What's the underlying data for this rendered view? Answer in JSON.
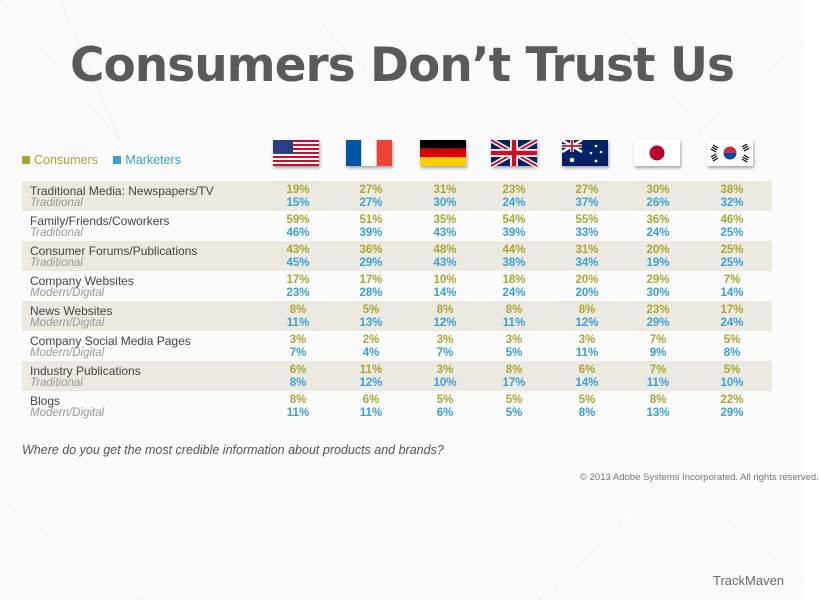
{
  "title": "Consumers Don’t Trust Us",
  "colors": {
    "consumers": "#a9a733",
    "marketers": "#3aa0d8"
  },
  "legend": [
    {
      "label": "Consumers",
      "color": "#a9a733"
    },
    {
      "label": "Marketers",
      "color": "#3aa0d8"
    }
  ],
  "flags": [
    "us-flag-icon",
    "france-flag-icon",
    "germany-flag-icon",
    "uk-flag-icon",
    "australia-flag-icon",
    "japan-flag-icon",
    "south-korea-flag-icon"
  ],
  "question": "Where do you get the most credible information about products and brands?",
  "copyright": "© 2013 Adobe Systems Incorporated. All rights reserved.",
  "brand": "TrackMaven",
  "chart_data": {
    "type": "table",
    "title": "Consumers Don’t Trust Us",
    "columns": [
      "us-flag-icon",
      "france-flag-icon",
      "germany-flag-icon",
      "uk-flag-icon",
      "australia-flag-icon",
      "japan-flag-icon",
      "south-korea-flag-icon"
    ],
    "series_names": [
      "Consumers",
      "Marketers"
    ],
    "rows": [
      {
        "label": "Traditional Media: Newspapers/TV",
        "category": "Traditional",
        "consumers": [
          "19%",
          "27%",
          "31%",
          "23%",
          "27%",
          "30%",
          "38%"
        ],
        "marketers": [
          "15%",
          "27%",
          "30%",
          "24%",
          "37%",
          "26%",
          "32%"
        ]
      },
      {
        "label": "Family/Friends/Coworkers",
        "category": "Traditional",
        "consumers": [
          "59%",
          "51%",
          "35%",
          "54%",
          "55%",
          "36%",
          "46%"
        ],
        "marketers": [
          "46%",
          "39%",
          "43%",
          "39%",
          "33%",
          "24%",
          "25%"
        ]
      },
      {
        "label": "Consumer Forums/Publications",
        "category": "Traditional",
        "consumers": [
          "43%",
          "36%",
          "48%",
          "44%",
          "31%",
          "20%",
          "25%"
        ],
        "marketers": [
          "45%",
          "29%",
          "43%",
          "38%",
          "34%",
          "19%",
          "25%"
        ]
      },
      {
        "label": "Company Websites",
        "category": "Modern/Digital",
        "consumers": [
          "17%",
          "17%",
          "10%",
          "18%",
          "20%",
          "29%",
          "7%"
        ],
        "marketers": [
          "23%",
          "28%",
          "14%",
          "24%",
          "20%",
          "30%",
          "14%"
        ]
      },
      {
        "label": "News Websites",
        "category": "Modern/Digital",
        "consumers": [
          "8%",
          "5%",
          "8%",
          "8%",
          "8%",
          "23%",
          "17%"
        ],
        "marketers": [
          "11%",
          "13%",
          "12%",
          "11%",
          "12%",
          "29%",
          "24%"
        ]
      },
      {
        "label": "Company Social Media Pages",
        "category": "Modern/Digital",
        "consumers": [
          "3%",
          "2%",
          "3%",
          "3%",
          "3%",
          "7%",
          "5%"
        ],
        "marketers": [
          "7%",
          "4%",
          "7%",
          "5%",
          "11%",
          "9%",
          "8%"
        ]
      },
      {
        "label": "Industry Publications",
        "category": "Traditional",
        "consumers": [
          "6%",
          "11%",
          "3%",
          "8%",
          "6%",
          "7%",
          "5%"
        ],
        "marketers": [
          "8%",
          "12%",
          "10%",
          "17%",
          "14%",
          "11%",
          "10%"
        ]
      },
      {
        "label": "Blogs",
        "category": "Modern/Digital",
        "consumers": [
          "8%",
          "6%",
          "5%",
          "5%",
          "5%",
          "8%",
          "22%"
        ],
        "marketers": [
          "11%",
          "11%",
          "6%",
          "5%",
          "8%",
          "13%",
          "29%"
        ]
      }
    ]
  }
}
